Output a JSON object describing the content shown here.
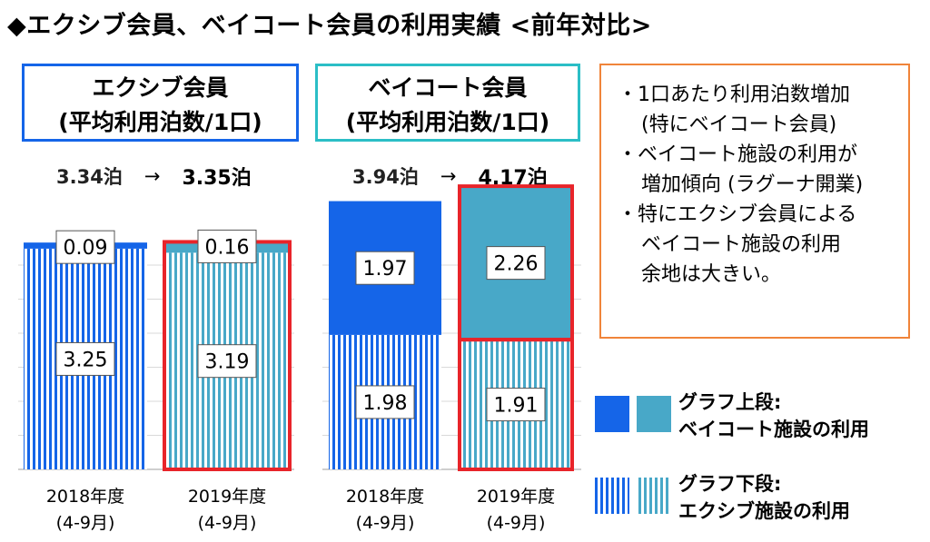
{
  "title": "◆エクシブ会員、ベイコート会員の利用実績 <前年対比>",
  "panels": [
    {
      "title_line1": "エクシブ会員",
      "title_line2": "(平均利用泊数/1口)",
      "from": "3.34泊",
      "arrow": "→",
      "to": "3.35泊"
    },
    {
      "title_line1": "ベイコート会員",
      "title_line2": "(平均利用泊数/1口)",
      "from": "3.94泊",
      "arrow": "→",
      "to": "4.17泊"
    }
  ],
  "note": {
    "items": [
      {
        "line1": "・1口あたり利用泊数増加",
        "line2": "(特にベイコート会員)"
      },
      {
        "line1": "・ベイコート施設の利用が",
        "line2": "増加傾向 (ラグーナ開業)"
      },
      {
        "line1": "・特にエクシブ会員による",
        "line2": "ベイコート施設の利用",
        "line3": "余地は大きい。"
      }
    ]
  },
  "legend": {
    "upper": {
      "line1": "グラフ上段:",
      "line2": "ベイコート施設の利用"
    },
    "lower": {
      "line1": "グラフ下段:",
      "line2": "エクシブ施設の利用"
    }
  },
  "colors": {
    "exiv_solid": "#1565e8",
    "baycourt_solid": "#48a8c8",
    "highlight_border": "#e8242a",
    "panel_left_border": "#1565e8",
    "panel_right_border": "#2bbec6",
    "note_border": "#f0843a"
  },
  "chart_data": [
    {
      "type": "bar",
      "stacked": true,
      "categories": [
        "2018年度\n(4-9月)",
        "2019年度\n(4-9月)"
      ],
      "series": [
        {
          "values": [
            3.25,
            3.19
          ]
        },
        {
          "values": [
            0.09,
            0.16
          ]
        }
      ],
      "highlight": [
        false,
        true
      ]
    },
    {
      "type": "bar",
      "stacked": true,
      "categories": [
        "2018年度\n(4-9月)",
        "2019年度\n(4-9月)"
      ],
      "series": [
        {
          "values": [
            1.98,
            1.91
          ]
        },
        {
          "values": [
            1.97,
            2.26
          ]
        }
      ],
      "highlight": [
        false,
        true
      ]
    }
  ]
}
